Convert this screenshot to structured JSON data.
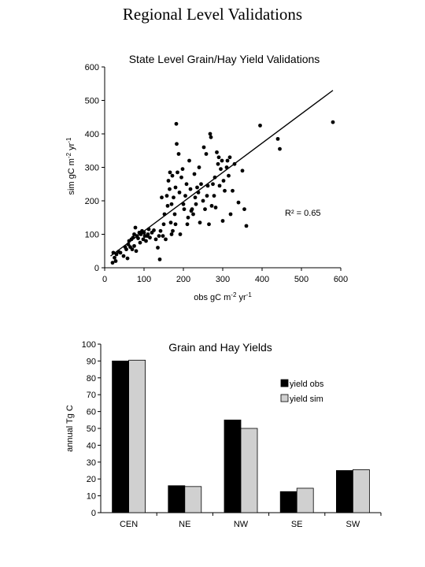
{
  "page_title": "Regional Level Validations",
  "chart_data": [
    {
      "type": "scatter",
      "title": "State Level Grain/Hay Yield Validations",
      "xlabel": "obs gC m-2 yr-1",
      "ylabel": "sim gC m-2 yr-1",
      "xlim": [
        0,
        600
      ],
      "ylim": [
        0,
        600
      ],
      "xticks": [
        0,
        100,
        200,
        300,
        400,
        500,
        600
      ],
      "yticks": [
        0,
        100,
        200,
        300,
        400,
        500,
        600
      ],
      "annotation": "R² = 0.65",
      "fit_line": {
        "x": [
          15,
          580
        ],
        "y": [
          35,
          530
        ]
      },
      "points": [
        [
          20,
          15
        ],
        [
          22,
          45
        ],
        [
          25,
          30
        ],
        [
          28,
          20
        ],
        [
          30,
          40
        ],
        [
          35,
          48
        ],
        [
          40,
          45
        ],
        [
          48,
          35
        ],
        [
          52,
          62
        ],
        [
          55,
          55
        ],
        [
          58,
          28
        ],
        [
          60,
          70
        ],
        [
          62,
          80
        ],
        [
          65,
          62
        ],
        [
          68,
          85
        ],
        [
          70,
          55
        ],
        [
          72,
          90
        ],
        [
          75,
          100
        ],
        [
          75,
          65
        ],
        [
          78,
          120
        ],
        [
          80,
          50
        ],
        [
          82,
          95
        ],
        [
          85,
          88
        ],
        [
          88,
          105
        ],
        [
          90,
          75
        ],
        [
          92,
          100
        ],
        [
          95,
          110
        ],
        [
          98,
          85
        ],
        [
          100,
          105
        ],
        [
          102,
          95
        ],
        [
          105,
          80
        ],
        [
          108,
          95
        ],
        [
          110,
          100
        ],
        [
          112,
          115
        ],
        [
          115,
          90
        ],
        [
          120,
          105
        ],
        [
          125,
          112
        ],
        [
          130,
          85
        ],
        [
          135,
          60
        ],
        [
          138,
          95
        ],
        [
          140,
          25
        ],
        [
          142,
          110
        ],
        [
          145,
          210
        ],
        [
          148,
          95
        ],
        [
          150,
          130
        ],
        [
          152,
          160
        ],
        [
          155,
          85
        ],
        [
          158,
          215
        ],
        [
          160,
          185
        ],
        [
          162,
          260
        ],
        [
          165,
          235
        ],
        [
          166,
          285
        ],
        [
          168,
          135
        ],
        [
          170,
          190
        ],
        [
          170,
          100
        ],
        [
          172,
          275
        ],
        [
          173,
          110
        ],
        [
          175,
          210
        ],
        [
          178,
          160
        ],
        [
          180,
          240
        ],
        [
          180,
          130
        ],
        [
          182,
          430
        ],
        [
          183,
          370
        ],
        [
          185,
          285
        ],
        [
          188,
          340
        ],
        [
          190,
          225
        ],
        [
          192,
          100
        ],
        [
          195,
          270
        ],
        [
          198,
          295
        ],
        [
          200,
          190
        ],
        [
          202,
          175
        ],
        [
          205,
          215
        ],
        [
          208,
          250
        ],
        [
          210,
          130
        ],
        [
          212,
          150
        ],
        [
          215,
          320
        ],
        [
          218,
          235
        ],
        [
          220,
          170
        ],
        [
          222,
          175
        ],
        [
          225,
          160
        ],
        [
          228,
          280
        ],
        [
          230,
          210
        ],
        [
          232,
          190
        ],
        [
          235,
          240
        ],
        [
          238,
          225
        ],
        [
          240,
          300
        ],
        [
          242,
          135
        ],
        [
          245,
          250
        ],
        [
          250,
          200
        ],
        [
          252,
          360
        ],
        [
          255,
          175
        ],
        [
          258,
          340
        ],
        [
          260,
          215
        ],
        [
          262,
          245
        ],
        [
          265,
          130
        ],
        [
          268,
          400
        ],
        [
          270,
          390
        ],
        [
          272,
          185
        ],
        [
          275,
          250
        ],
        [
          278,
          215
        ],
        [
          280,
          270
        ],
        [
          282,
          180
        ],
        [
          285,
          345
        ],
        [
          288,
          310
        ],
        [
          290,
          330
        ],
        [
          292,
          245
        ],
        [
          295,
          295
        ],
        [
          298,
          320
        ],
        [
          300,
          140
        ],
        [
          302,
          260
        ],
        [
          305,
          230
        ],
        [
          310,
          300
        ],
        [
          312,
          320
        ],
        [
          315,
          275
        ],
        [
          318,
          330
        ],
        [
          320,
          160
        ],
        [
          325,
          230
        ],
        [
          330,
          310
        ],
        [
          340,
          195
        ],
        [
          350,
          290
        ],
        [
          355,
          175
        ],
        [
          360,
          125
        ],
        [
          395,
          425
        ],
        [
          440,
          385
        ],
        [
          445,
          355
        ],
        [
          580,
          435
        ]
      ]
    },
    {
      "type": "bar",
      "title": "Grain and Hay Yields",
      "ylabel": "annual Tg C",
      "categories": [
        "CEN",
        "NE",
        "NW",
        "SE",
        "SW"
      ],
      "ylim": [
        0,
        100
      ],
      "yticks": [
        0,
        10,
        20,
        30,
        40,
        50,
        60,
        70,
        80,
        90,
        100
      ],
      "series": [
        {
          "name": "yield obs",
          "values": [
            90,
            16,
            55,
            12.5,
            25
          ],
          "color": "#000000"
        },
        {
          "name": "yield sim",
          "values": [
            90.5,
            15.5,
            50,
            14.5,
            25.5
          ],
          "color": "#d0d0d0"
        }
      ],
      "legend": "right"
    }
  ]
}
